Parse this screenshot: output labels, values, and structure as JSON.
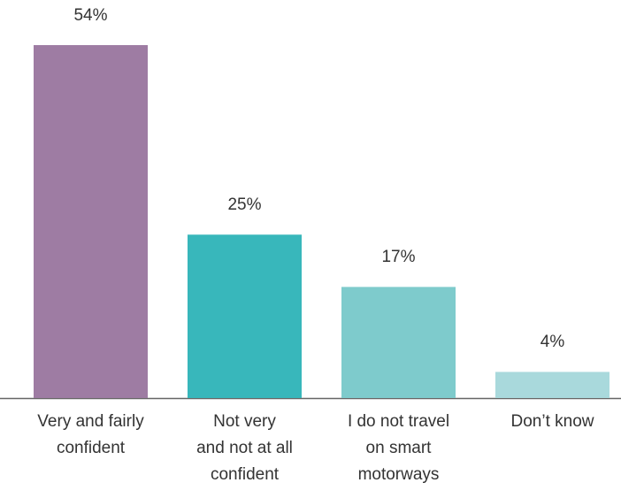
{
  "chart_data": {
    "type": "bar",
    "categories": [
      "Very and fairly\nconfident",
      "Not very\nand not at all\nconfident",
      "I do not travel\non smart\nmotorways",
      "Don’t know"
    ],
    "values": [
      54,
      25,
      17,
      4
    ],
    "value_labels": [
      "54%",
      "25%",
      "17%",
      "4%"
    ],
    "colors": [
      "#9e7ca3",
      "#38b7bb",
      "#7ecbcc",
      "#a9d9dc"
    ]
  }
}
